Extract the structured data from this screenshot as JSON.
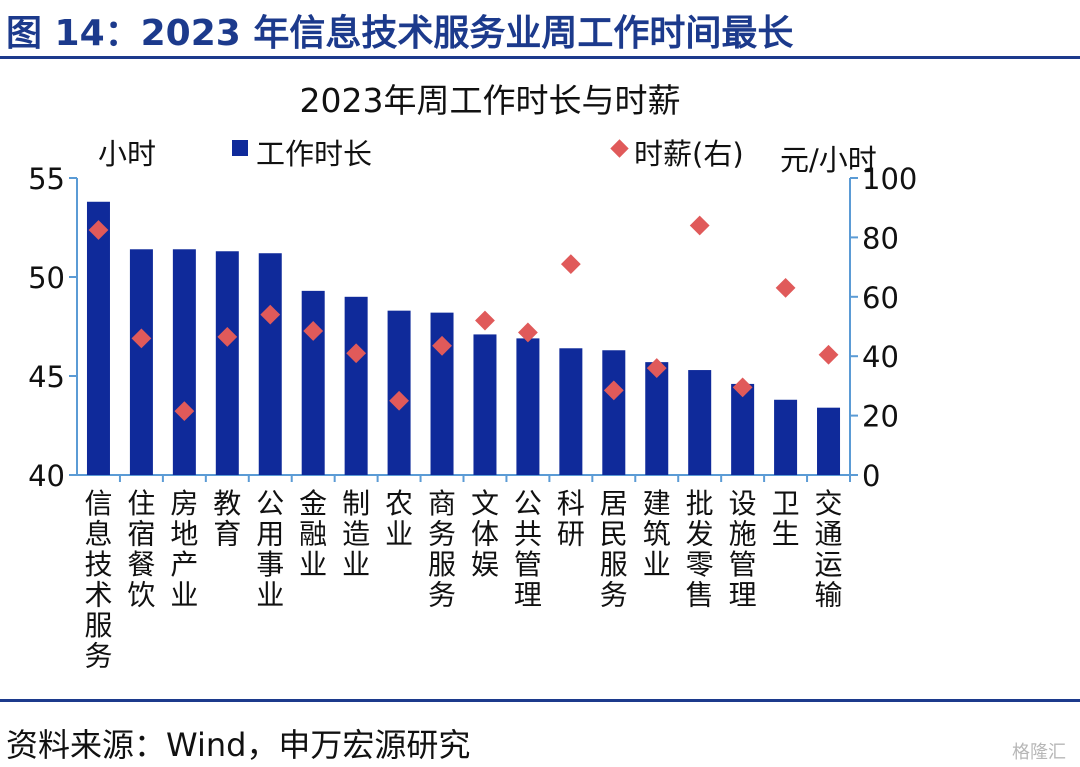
{
  "figure_title": "图 14：2023 年信息技术服务业周工作时间最长",
  "source": "资料来源：Wind，申万宏源研究",
  "watermark": "格隆汇",
  "colors": {
    "bar": "#0f2a9a",
    "marker": "#e05a5a",
    "axis": "#5b9bd5",
    "title": "#1c3a8c"
  },
  "chart_data": {
    "type": "bar",
    "title": "2023年周工作时长与时薪",
    "y_left_unit": "小时",
    "y_right_unit": "元/小时",
    "legend": {
      "bar_label": "工作时长",
      "marker_label": "时薪(右)",
      "placement": "top"
    },
    "categories": [
      "信息技术服务",
      "住宿餐饮",
      "房地产业",
      "教育",
      "公用事业",
      "金融业",
      "制造业",
      "农业",
      "商务服务",
      "文体娱",
      "公共管理",
      "科研",
      "居民服务",
      "建筑业",
      "批发零售",
      "设施管理",
      "卫生",
      "交通运输"
    ],
    "series": [
      {
        "name": "工作时长",
        "type": "bar",
        "axis": "left",
        "values": [
          53.8,
          51.4,
          51.4,
          51.3,
          51.2,
          49.3,
          49.0,
          48.3,
          48.2,
          47.1,
          46.9,
          46.4,
          46.3,
          45.7,
          45.3,
          44.6,
          43.8,
          43.4
        ]
      },
      {
        "name": "时薪(右)",
        "type": "scatter",
        "axis": "right",
        "values": [
          82.5,
          46,
          21.5,
          46.5,
          54,
          48.5,
          41,
          25,
          43.5,
          52,
          48,
          71,
          28.5,
          36,
          84,
          29.5,
          63,
          40.5
        ]
      }
    ],
    "y_left": {
      "min": 40,
      "max": 55,
      "ticks": [
        40,
        45,
        50,
        55
      ]
    },
    "y_right": {
      "min": 0,
      "max": 100,
      "ticks": [
        0,
        20,
        40,
        60,
        80,
        100
      ]
    },
    "grid": false
  }
}
